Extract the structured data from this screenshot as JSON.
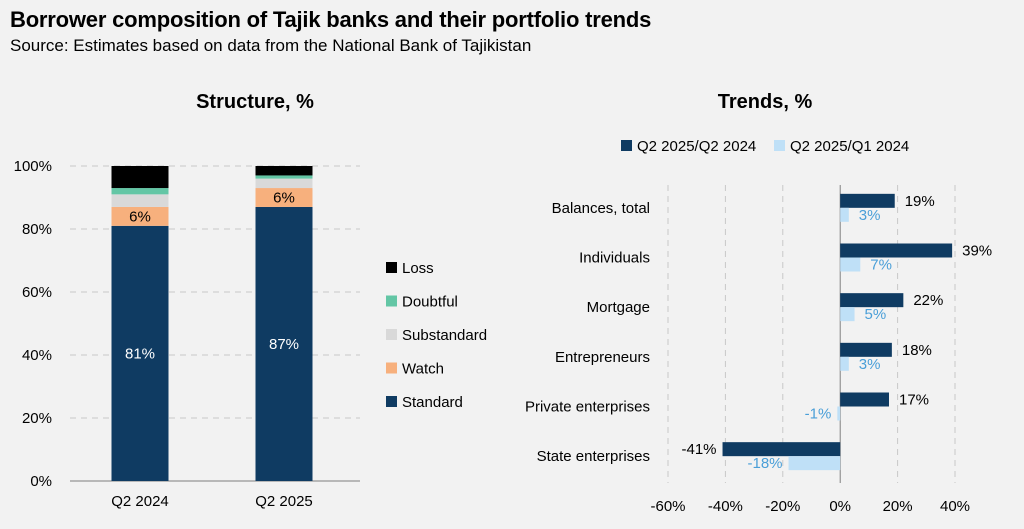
{
  "header": {
    "title": "Borrower composition of Tajik banks and their portfolio trends",
    "subtitle": "Source: Estimates based on data from the National Bank of Tajikistan"
  },
  "chart_data": [
    {
      "type": "bar",
      "stacked": true,
      "title": "Structure, %",
      "categories": [
        "Q2 2024",
        "Q2 2025"
      ],
      "ylim": [
        0,
        100
      ],
      "yticks": [
        "0%",
        "20%",
        "40%",
        "60%",
        "80%",
        "100%"
      ],
      "grid": true,
      "legend_position": "right",
      "series": [
        {
          "name": "Standard",
          "values": [
            81,
            87
          ],
          "color": "#0f3b62",
          "labels": [
            "81%",
            "87%"
          ]
        },
        {
          "name": "Watch",
          "values": [
            6,
            6
          ],
          "color": "#f7b07d",
          "labels": [
            "6%",
            "6%"
          ]
        },
        {
          "name": "Substandard",
          "values": [
            4,
            3
          ],
          "color": "#d9d9d9",
          "labels": []
        },
        {
          "name": "Doubtful",
          "values": [
            2,
            1
          ],
          "color": "#63c6a5",
          "labels": []
        },
        {
          "name": "Loss",
          "values": [
            7,
            3
          ],
          "color": "#000000",
          "labels": []
        }
      ]
    },
    {
      "type": "bar",
      "orientation": "horizontal",
      "title": "Trends, %",
      "categories": [
        "Balances, total",
        "Individuals",
        "Mortgage",
        "Entrepreneurs",
        "Private enterprises",
        "State enterprises"
      ],
      "xlim": [
        -60,
        40
      ],
      "xticks": [
        "-60%",
        "-40%",
        "-20%",
        "0%",
        "20%",
        "40%"
      ],
      "grid": true,
      "legend_position": "top",
      "series": [
        {
          "name": "Q2 2025/Q2 2024",
          "values": [
            19,
            39,
            22,
            18,
            17,
            -41
          ],
          "color": "#0f3b62",
          "labels": [
            "19%",
            "39%",
            "22%",
            "18%",
            "17%",
            "-41%"
          ]
        },
        {
          "name": "Q2 2025/Q1 2024",
          "values": [
            3,
            7,
            5,
            3,
            -1,
            -18
          ],
          "color": "#bfe0f7",
          "label_color": "#4a9fd8",
          "labels": [
            "3%",
            "7%",
            "5%",
            "3%",
            "-1%",
            "-18%"
          ]
        }
      ]
    }
  ]
}
